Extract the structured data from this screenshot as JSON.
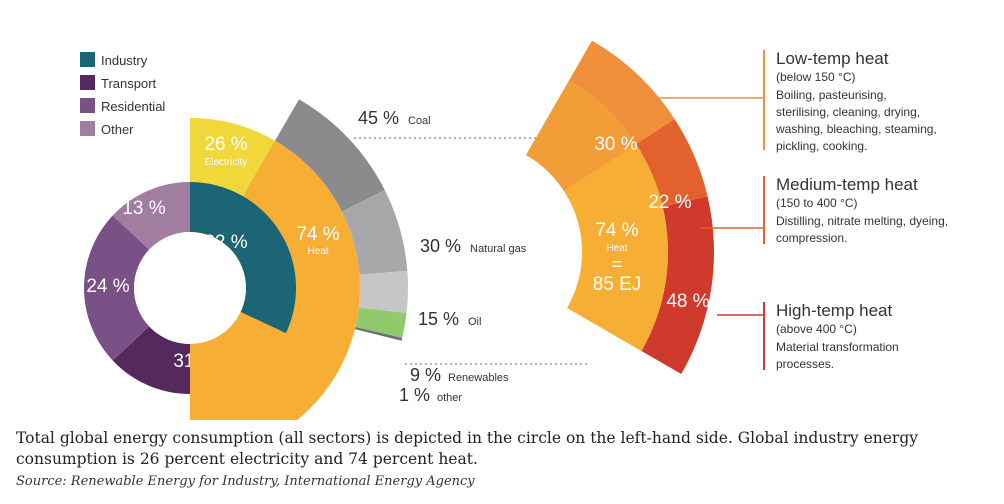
{
  "legend": [
    {
      "label": "Industry",
      "color": "#1c6577"
    },
    {
      "label": "Transport",
      "color": "#55285e"
    },
    {
      "label": "Residential",
      "color": "#7a5187"
    },
    {
      "label": "Other",
      "color": "#a17e9f"
    }
  ],
  "chart_data": [
    {
      "type": "pie",
      "variant": "donut",
      "slices": [
        {
          "label": "Industry",
          "value": 32,
          "display": "32 %",
          "color": "#1c6577"
        },
        {
          "label": "Transport",
          "value": 31,
          "display": "31 %",
          "color": "#55285e"
        },
        {
          "label": "Residential",
          "value": 24,
          "display": "24 %",
          "color": "#7a5187"
        },
        {
          "label": "Other",
          "value": 13,
          "display": "13 %",
          "color": "#a17e9f"
        }
      ]
    },
    {
      "type": "pie",
      "variant": "industry split",
      "slices": [
        {
          "label": "Electricity",
          "value": 26,
          "display": "26 %",
          "color": "#f0d83a"
        },
        {
          "label": "Heat",
          "value": 74,
          "display": "74 %",
          "color": "#f6ae35"
        }
      ]
    },
    {
      "type": "pie",
      "variant": "heat by source",
      "slices": [
        {
          "label": "Coal",
          "value": 45,
          "display": "45 %",
          "color": "#8b8b8e"
        },
        {
          "label": "Natural gas",
          "value": 30,
          "display": "30 %",
          "color": "#a8a8ab"
        },
        {
          "label": "Oil",
          "value": 15,
          "display": "15 %",
          "color": "#c6c6c8"
        },
        {
          "label": "Renewables",
          "value": 9,
          "display": "9 %",
          "color": "#8fca6c"
        },
        {
          "label": "other",
          "value": 1,
          "display": "1 %",
          "color": "#6f6f72"
        }
      ]
    },
    {
      "type": "pie",
      "variant": "heat by temperature",
      "center": {
        "percent": "74 %",
        "label": "Heat",
        "equals": "=",
        "amount": "85 EJ"
      },
      "slices": [
        {
          "label": "Low-temp heat",
          "value": 30,
          "display": "30 %",
          "color": "#ef8f3a"
        },
        {
          "label": "Medium-temp heat",
          "value": 22,
          "display": "22 %",
          "color": "#e2612d"
        },
        {
          "label": "High-temp heat",
          "value": 48,
          "display": "48 %",
          "color": "#cf3a2d"
        }
      ]
    }
  ],
  "annotations": [
    {
      "title": "Low-temp heat",
      "range": "(below 150 °C)",
      "lines": [
        "Boiling, pasteurising,",
        "sterilising, cleaning, drying,",
        "washing, bleaching, steaming,",
        "pickling, cooking."
      ],
      "color": "#ef8f3a"
    },
    {
      "title": "Medium-temp heat",
      "range": "(150 to 400 °C)",
      "lines": [
        "Distilling, nitrate melting, dyeing,",
        "compression."
      ],
      "color": "#e2612d"
    },
    {
      "title": "High-temp heat",
      "range": "(above 400 °C)",
      "lines": [
        "Material transformation",
        "processes."
      ],
      "color": "#cf3a2d"
    }
  ],
  "caption": "Total global energy consumption (all sectors) is depicted in the circle on the left-hand side. Global industry energy consumption is 26 percent electricity and 74 percent heat.",
  "source": "Source: Renewable Energy for Industry, International Energy Agency"
}
